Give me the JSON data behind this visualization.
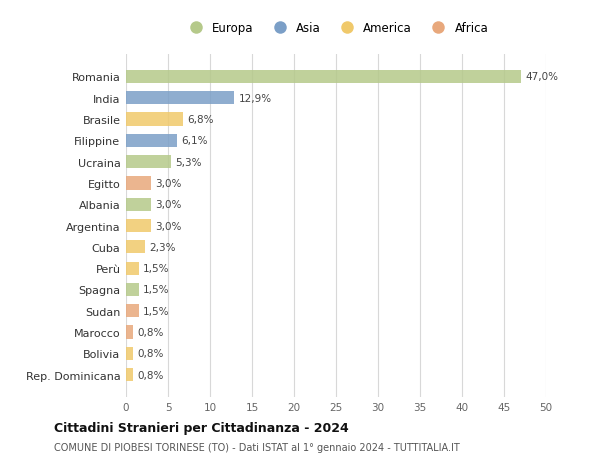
{
  "countries": [
    "Romania",
    "India",
    "Brasile",
    "Filippine",
    "Ucraina",
    "Egitto",
    "Albania",
    "Argentina",
    "Cuba",
    "Perù",
    "Spagna",
    "Sudan",
    "Marocco",
    "Bolivia",
    "Rep. Dominicana"
  ],
  "values": [
    47.0,
    12.9,
    6.8,
    6.1,
    5.3,
    3.0,
    3.0,
    3.0,
    2.3,
    1.5,
    1.5,
    1.5,
    0.8,
    0.8,
    0.8
  ],
  "labels": [
    "47,0%",
    "12,9%",
    "6,8%",
    "6,1%",
    "5,3%",
    "3,0%",
    "3,0%",
    "3,0%",
    "2,3%",
    "1,5%",
    "1,5%",
    "1,5%",
    "0,8%",
    "0,8%",
    "0,8%"
  ],
  "continents": [
    "Europa",
    "Asia",
    "America",
    "Asia",
    "Europa",
    "Africa",
    "Europa",
    "America",
    "America",
    "America",
    "Europa",
    "Africa",
    "Africa",
    "America",
    "America"
  ],
  "colors": {
    "Europa": "#b5c98a",
    "Asia": "#7b9fc7",
    "America": "#f0c96b",
    "Africa": "#e8a87c"
  },
  "legend_order": [
    "Europa",
    "Asia",
    "America",
    "Africa"
  ],
  "xlim": [
    0,
    50
  ],
  "xticks": [
    0,
    5,
    10,
    15,
    20,
    25,
    30,
    35,
    40,
    45,
    50
  ],
  "title": "Cittadini Stranieri per Cittadinanza - 2024",
  "subtitle": "COMUNE DI PIOBESI TORINESE (TO) - Dati ISTAT al 1° gennaio 2024 - TUTTITALIA.IT",
  "bg_color": "#ffffff",
  "grid_color": "#d8d8d8",
  "bar_height": 0.62
}
